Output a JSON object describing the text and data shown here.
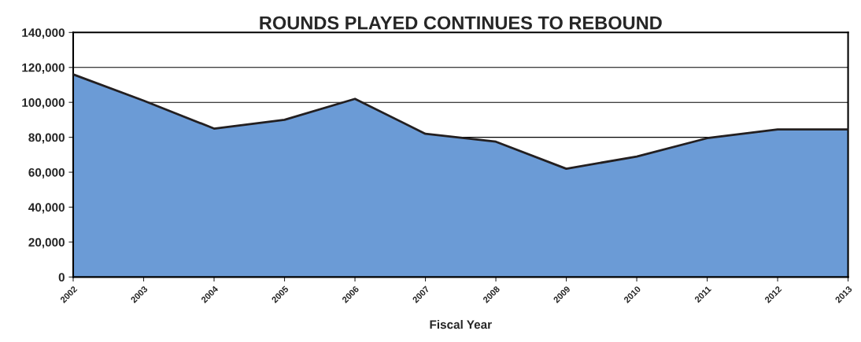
{
  "chart_data": {
    "type": "area",
    "title": "ROUNDS PLAYED CONTINUES TO REBOUND",
    "xlabel": "Fiscal Year",
    "categories": [
      "2002",
      "2003",
      "2004",
      "2005",
      "2006",
      "2007",
      "2008",
      "2009",
      "2010",
      "2011",
      "2012",
      "2013"
    ],
    "series": [
      {
        "color": "#6b9bd6",
        "values": [
          116000,
          101000,
          85000,
          90000,
          102000,
          82000,
          77500,
          62000,
          69000,
          79500,
          84500,
          84500
        ]
      }
    ],
    "ylim": [
      0,
      140000
    ],
    "yticks": [
      {
        "value": 0,
        "label": "0"
      },
      {
        "value": 20000,
        "label": "20,000"
      },
      {
        "value": 40000,
        "label": "40,000"
      },
      {
        "value": 60000,
        "label": "60,000"
      },
      {
        "value": 80000,
        "label": "80,000"
      },
      {
        "value": 100000,
        "label": "100,000"
      },
      {
        "value": 120000,
        "label": "120,000"
      },
      {
        "value": 140000,
        "label": "140,000"
      }
    ],
    "grid": "y",
    "legend": false
  }
}
